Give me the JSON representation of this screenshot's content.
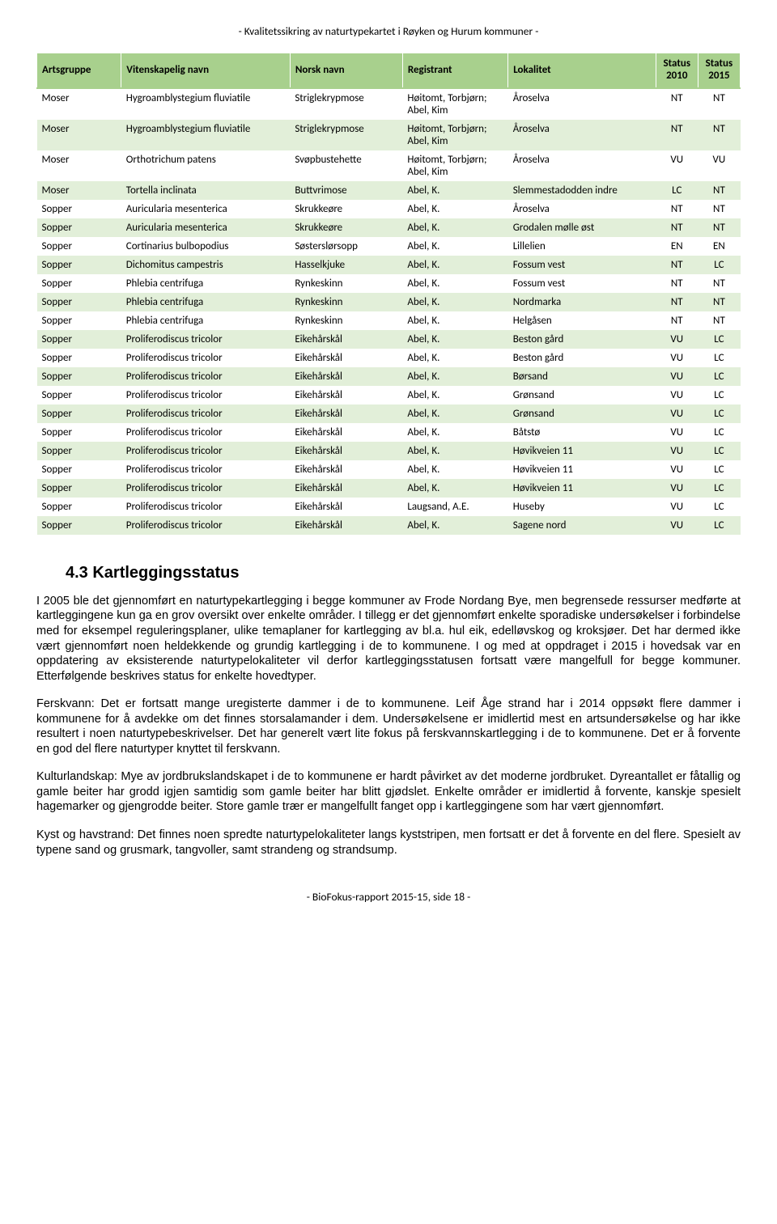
{
  "page_header": "- Kvalitetssikring av naturtypekartet i Røyken og Hurum kommuner -",
  "page_footer": "- BioFokus-rapport 2015-15, side 18 -",
  "table": {
    "columns": [
      "Artsgruppe",
      "Vitenskapelig navn",
      "Norsk navn",
      "Registrant",
      "Lokalitet",
      "Status 2010",
      "Status 2015"
    ],
    "status_cols": [
      {
        "line1": "Status",
        "line2": "2010"
      },
      {
        "line1": "Status",
        "line2": "2015"
      }
    ],
    "rows": [
      [
        "Moser",
        "Hygroamblystegium fluviatile",
        "Striglekrypmose",
        "Høitomt, Torbjørn; Abel, Kim",
        "Åroselva",
        "NT",
        "NT"
      ],
      [
        "Moser",
        "Hygroamblystegium fluviatile",
        "Striglekrypmose",
        "Høitomt, Torbjørn; Abel, Kim",
        "Åroselva",
        "NT",
        "NT"
      ],
      [
        "Moser",
        "Orthotrichum patens",
        "Svøpbustehette",
        "Høitomt, Torbjørn; Abel, Kim",
        "Åroselva",
        "VU",
        "VU"
      ],
      [
        "Moser",
        "Tortella inclinata",
        "Buttvrimose",
        "Abel, K.",
        "Slemmestadodden indre",
        "LC",
        "NT"
      ],
      [
        "Sopper",
        "Auricularia mesenterica",
        "Skrukkeøre",
        "Abel, K.",
        "Åroselva",
        "NT",
        "NT"
      ],
      [
        "Sopper",
        "Auricularia mesenterica",
        "Skrukkeøre",
        "Abel, K.",
        "Grodalen mølle øst",
        "NT",
        "NT"
      ],
      [
        "Sopper",
        "Cortinarius bulbopodius",
        "Søsterslørsopp",
        "Abel, K.",
        "Lillelien",
        "EN",
        "EN"
      ],
      [
        "Sopper",
        "Dichomitus campestris",
        "Hasselkjuke",
        "Abel, K.",
        "Fossum vest",
        "NT",
        "LC"
      ],
      [
        "Sopper",
        "Phlebia centrifuga",
        "Rynkeskinn",
        "Abel, K.",
        "Fossum vest",
        "NT",
        "NT"
      ],
      [
        "Sopper",
        "Phlebia centrifuga",
        "Rynkeskinn",
        "Abel, K.",
        "Nordmarka",
        "NT",
        "NT"
      ],
      [
        "Sopper",
        "Phlebia centrifuga",
        "Rynkeskinn",
        "Abel, K.",
        "Helgåsen",
        "NT",
        "NT"
      ],
      [
        "Sopper",
        "Proliferodiscus tricolor",
        "Eikehårskål",
        "Abel, K.",
        "Beston gård",
        "VU",
        "LC"
      ],
      [
        "Sopper",
        "Proliferodiscus tricolor",
        "Eikehårskål",
        "Abel, K.",
        "Beston gård",
        "VU",
        "LC"
      ],
      [
        "Sopper",
        "Proliferodiscus tricolor",
        "Eikehårskål",
        "Abel, K.",
        "Børsand",
        "VU",
        "LC"
      ],
      [
        "Sopper",
        "Proliferodiscus tricolor",
        "Eikehårskål",
        "Abel, K.",
        "Grønsand",
        "VU",
        "LC"
      ],
      [
        "Sopper",
        "Proliferodiscus tricolor",
        "Eikehårskål",
        "Abel, K.",
        "Grønsand",
        "VU",
        "LC"
      ],
      [
        "Sopper",
        "Proliferodiscus tricolor",
        "Eikehårskål",
        "Abel, K.",
        "Båtstø",
        "VU",
        "LC"
      ],
      [
        "Sopper",
        "Proliferodiscus tricolor",
        "Eikehårskål",
        "Abel, K.",
        "Høvikveien 11",
        "VU",
        "LC"
      ],
      [
        "Sopper",
        "Proliferodiscus tricolor",
        "Eikehårskål",
        "Abel, K.",
        "Høvikveien 11",
        "VU",
        "LC"
      ],
      [
        "Sopper",
        "Proliferodiscus tricolor",
        "Eikehårskål",
        "Abel, K.",
        "Høvikveien 11",
        "VU",
        "LC"
      ],
      [
        "Sopper",
        "Proliferodiscus tricolor",
        "Eikehårskål",
        "Laugsand, A.E.",
        "Huseby",
        "VU",
        "LC"
      ],
      [
        "Sopper",
        "Proliferodiscus tricolor",
        "Eikehårskål",
        "Abel, K.",
        "Sagene nord",
        "VU",
        "LC"
      ]
    ],
    "header_bg": "#a8d08d",
    "even_bg": "#e2efd9",
    "odd_bg": "#ffffff"
  },
  "section": {
    "heading": "4.3  Kartleggingsstatus",
    "paragraphs": [
      "I 2005 ble det gjennomført en naturtypekartlegging i begge kommuner av Frode Nordang Bye, men begrensede ressurser medførte at kartleggingene kun ga en grov oversikt over enkelte områder. I tillegg er det gjennomført enkelte sporadiske undersøkelser i forbindelse med for eksempel reguleringsplaner, ulike temaplaner for kartlegging av bl.a. hul eik, edelløvskog og kroksjøer. Det har dermed ikke vært gjennomført noen heldekkende og grundig kartlegging i de to kommunene. I og med at oppdraget i 2015 i hovedsak var en oppdatering av eksisterende naturtypelokaliteter vil derfor kartleggingsstatusen fortsatt være mangelfull for begge kommuner. Etterfølgende beskrives status for enkelte hovedtyper.",
      "Ferskvann: Det er fortsatt mange uregisterte dammer i de to kommunene. Leif Åge strand har i 2014 oppsøkt flere dammer i kommunene for å avdekke om det finnes storsalamander i dem. Undersøkelsene er imidlertid mest en artsundersøkelse og har ikke resultert i noen naturtypebeskrivelser. Det har generelt vært lite fokus på ferskvannskartlegging i de to kommunene. Det er å forvente en god del flere naturtyper knyttet til ferskvann.",
      "Kulturlandskap: Mye av jordbrukslandskapet i de to kommunene er hardt påvirket av det moderne jordbruket. Dyreantallet er fåtallig og gamle beiter har grodd igjen samtidig som gamle beiter har blitt gjødslet. Enkelte områder er imidlertid å forvente, kanskje spesielt hagemarker og gjengrodde beiter. Store gamle trær er mangelfullt fanget opp i kartleggingene som har vært gjennomført.",
      "Kyst og havstrand: Det finnes noen spredte naturtypelokaliteter langs kyststripen, men fortsatt er det å forvente en del flere. Spesielt av typene sand og grusmark, tangvoller, samt strandeng og strandsump."
    ]
  }
}
